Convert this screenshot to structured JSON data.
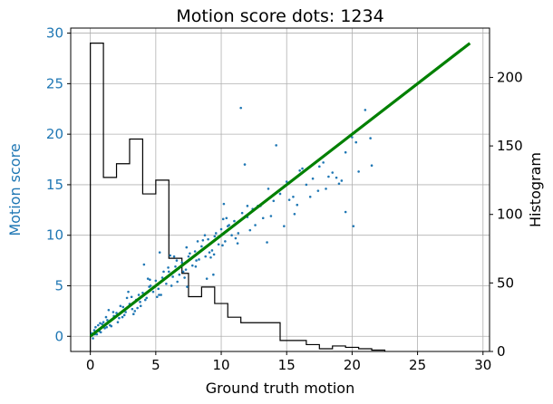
{
  "chart_data": {
    "type": "scatter",
    "title": "Motion score dots:  1234",
    "xlabel": "Ground truth motion",
    "ylabel": "Motion score",
    "y2label": "Histogram",
    "xlim": [
      -1.5,
      30.5
    ],
    "ylim": [
      -1.5,
      30.5
    ],
    "y2lim": [
      0,
      236
    ],
    "xticks": [
      "0",
      "5",
      "10",
      "15",
      "20",
      "25",
      "30"
    ],
    "yticks": [
      "0",
      "5",
      "10",
      "15",
      "20",
      "25",
      "30"
    ],
    "y2ticks": [
      "0",
      "50",
      "100",
      "150",
      "200"
    ],
    "grid": true,
    "colors": {
      "scatter": "#1f77b4",
      "fit_line": "#008000",
      "histogram": "#000000",
      "left_axis_label": "#1f77b4"
    },
    "fit_line": {
      "name": "",
      "x": [
        0,
        29
      ],
      "y": [
        0,
        29
      ]
    },
    "histogram": {
      "bin_edges": [
        0,
        1,
        2,
        3,
        4,
        5,
        6,
        7,
        7.5,
        8.5,
        9.5,
        10.5,
        11.5,
        14.5,
        16.5,
        17.5,
        18.5,
        19.5,
        20.5,
        21.5,
        22.5
      ],
      "counts": [
        225,
        127,
        137,
        155,
        115,
        125,
        68,
        57,
        40,
        47,
        35,
        25,
        21,
        8,
        5,
        2,
        4,
        3,
        2,
        1
      ]
    },
    "scatter": {
      "name": "",
      "x": [
        0.1,
        0.2,
        0.3,
        0.5,
        0.4,
        0.7,
        0.9,
        1.1,
        1.3,
        1.0,
        1.5,
        1.8,
        2.0,
        2.2,
        2.5,
        2.7,
        3.0,
        3.2,
        3.5,
        3.8,
        4.0,
        4.3,
        4.5,
        4.8,
        5.0,
        5.2,
        5.5,
        5.8,
        6.0,
        6.3,
        6.5,
        6.8,
        7.0,
        7.3,
        7.5,
        7.8,
        8.0,
        8.3,
        8.5,
        8.8,
        9.0,
        9.3,
        9.5,
        9.8,
        10.0,
        10.3,
        10.5,
        10.8,
        11.0,
        11.3,
        11.6,
        12.0,
        12.4,
        12.8,
        13.2,
        13.6,
        14.0,
        14.5,
        15.0,
        15.5,
        16.0,
        16.5,
        17.0,
        17.5,
        18.0,
        18.5,
        19.0,
        19.5,
        20.0,
        20.5,
        21.0,
        21.5,
        11.5,
        11.8,
        14.2,
        16.2,
        17.8,
        20.3,
        21.4,
        20.1,
        19.5,
        12.0,
        9.4,
        7.4,
        6.1,
        5.3,
        2.9,
        3.6,
        4.1,
        8.9,
        10.2,
        13.5,
        15.6,
        0.6,
        0.8,
        1.2,
        1.6,
        2.3,
        2.6,
        3.3,
        3.7,
        4.2,
        4.6,
        5.1,
        5.6,
        6.2,
        6.6,
        7.1,
        7.6,
        8.1,
        8.6,
        9.1,
        9.6,
        10.1,
        10.6,
        11.1,
        12.2,
        13.0,
        14.8,
        16.8,
        18.2,
        19.2,
        1.4,
        2.1,
        2.8,
        3.4,
        4.4,
        5.4,
        6.4,
        7.2,
        8.2,
        9.2,
        10.4,
        12.6,
        15.2,
        17.4,
        0.35,
        0.75,
        1.25,
        1.75,
        2.45,
        3.15,
        3.85,
        4.55,
        5.25,
        5.95,
        6.65,
        7.35,
        8.05,
        8.75,
        9.45,
        10.15,
        11.25,
        13.8,
        15.8,
        18.8
      ],
      "y": [
        0.3,
        -0.2,
        0.6,
        0.2,
        0.9,
        0.5,
        1.2,
        0.8,
        1.6,
        1.4,
        1.1,
        2.0,
        2.3,
        1.8,
        2.9,
        2.4,
        3.2,
        2.7,
        3.6,
        3.4,
        4.3,
        3.8,
        4.9,
        4.4,
        5.5,
        4.7,
        5.8,
        5.2,
        6.4,
        5.9,
        6.9,
        6.1,
        7.3,
        6.6,
        7.9,
        7.0,
        8.4,
        7.6,
        8.9,
        7.9,
        9.6,
        8.5,
        9.9,
        9.1,
        10.6,
        9.4,
        10.9,
        10.0,
        11.4,
        10.2,
        12.2,
        11.8,
        12.6,
        12.9,
        11.7,
        14.6,
        13.4,
        14.1,
        15.3,
        13.8,
        16.4,
        15.0,
        15.6,
        16.8,
        14.6,
        16.2,
        15.1,
        18.2,
        19.7,
        16.3,
        22.4,
        16.9,
        22.6,
        17.0,
        18.9,
        16.6,
        17.2,
        19.2,
        19.6,
        10.9,
        12.3,
        12.9,
        6.1,
        4.9,
        8.0,
        8.3,
        4.4,
        2.8,
        7.1,
        5.7,
        13.1,
        9.3,
        12.1,
        1.1,
        0.4,
        1.9,
        1.0,
        3.0,
        2.1,
        2.2,
        4.1,
        3.6,
        5.0,
        3.9,
        6.4,
        5.0,
        7.5,
        6.4,
        8.2,
        7.5,
        9.5,
        8.3,
        10.2,
        9.0,
        11.0,
        9.7,
        10.5,
        12.9,
        10.9,
        13.8,
        15.8,
        15.4,
        2.6,
        1.4,
        3.8,
        2.5,
        5.7,
        4.1,
        7.9,
        5.8,
        9.4,
        7.8,
        11.7,
        11.0,
        13.5,
        14.4,
        0.2,
        1.3,
        0.9,
        2.4,
        1.9,
        3.9,
        3.0,
        5.6,
        4.1,
        6.8,
        5.4,
        8.8,
        6.9,
        10.0,
        8.1,
        11.6,
        9.2,
        11.9,
        13.0,
        15.7
      ]
    }
  }
}
